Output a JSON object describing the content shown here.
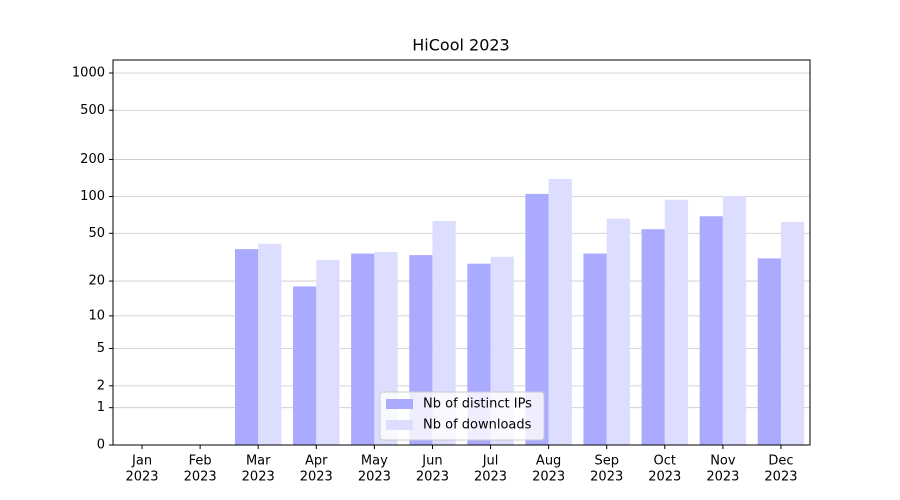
{
  "chart_data": {
    "type": "bar",
    "title": "HiCool 2023",
    "categories": [
      [
        "Jan",
        "2023"
      ],
      [
        "Feb",
        "2023"
      ],
      [
        "Mar",
        "2023"
      ],
      [
        "Apr",
        "2023"
      ],
      [
        "May",
        "2023"
      ],
      [
        "Jun",
        "2023"
      ],
      [
        "Jul",
        "2023"
      ],
      [
        "Aug",
        "2023"
      ],
      [
        "Sep",
        "2023"
      ],
      [
        "Oct",
        "2023"
      ],
      [
        "Nov",
        "2023"
      ],
      [
        "Dec",
        "2023"
      ]
    ],
    "series": [
      {
        "name": "Nb of distinct IPs",
        "color": "#aaaaff",
        "values": [
          0,
          0,
          37,
          18,
          34,
          33,
          28,
          105,
          34,
          54,
          69,
          31
        ]
      },
      {
        "name": "Nb of downloads",
        "color": "#ddddff",
        "values": [
          0,
          0,
          41,
          30,
          35,
          63,
          32,
          139,
          66,
          94,
          101,
          62
        ]
      }
    ],
    "yscale": "log1p",
    "ylim": [
      0,
      1273
    ],
    "yticks": [
      0,
      1,
      2,
      5,
      10,
      20,
      50,
      100,
      200,
      500,
      1000
    ],
    "grid": true,
    "legend": "lower center"
  }
}
